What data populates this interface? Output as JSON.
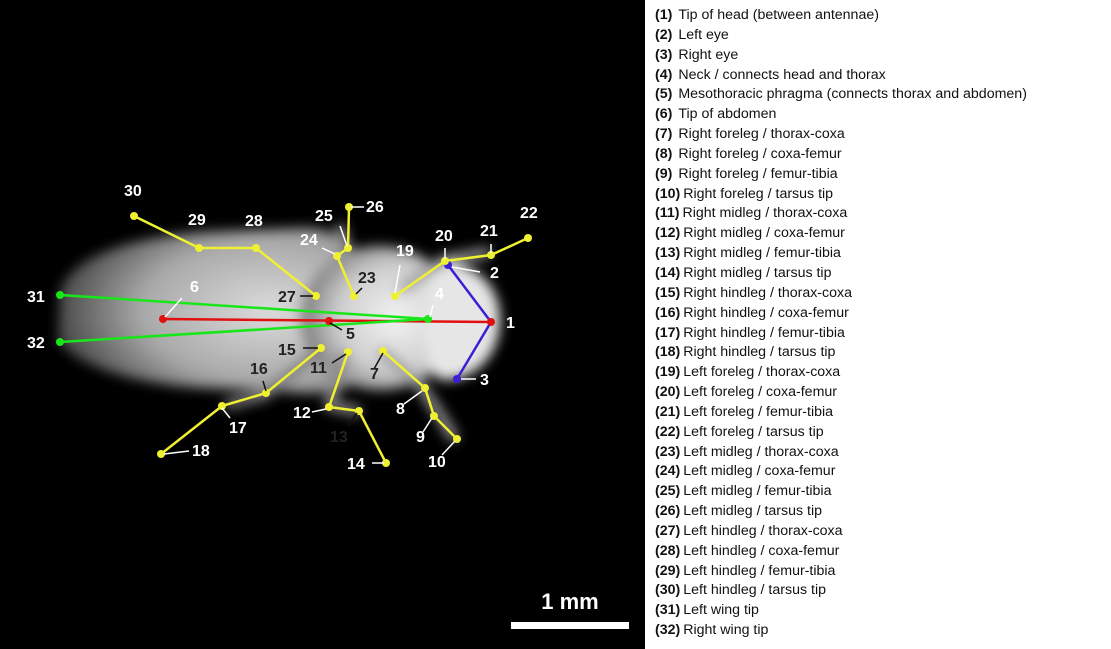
{
  "figure": {
    "scale_bar_label": "1 mm",
    "colors": {
      "background": "#000000",
      "legs": "#f0f032",
      "midline": "#e01010",
      "head": "#3a1fd6",
      "wings": "#19e619",
      "label_light": "#ffffff",
      "label_dark": "#222222"
    }
  },
  "legend": [
    {
      "num": "(1)",
      "text": "Tip of head (between antennae)"
    },
    {
      "num": "(2)",
      "text": "Left eye"
    },
    {
      "num": "(3)",
      "text": "Right eye"
    },
    {
      "num": "(4)",
      "text": "Neck / connects head and thorax"
    },
    {
      "num": "(5)",
      "text": "Mesothoracic phragma (connects thorax and abdomen)"
    },
    {
      "num": "(6)",
      "text": "Tip of abdomen"
    },
    {
      "num": "(7)",
      "text": "Right foreleg / thorax-coxa"
    },
    {
      "num": "(8)",
      "text": "Right foreleg / coxa-femur"
    },
    {
      "num": "(9)",
      "text": "Right foreleg / femur-tibia"
    },
    {
      "num": "(10)",
      "text": "Right foreleg / tarsus tip"
    },
    {
      "num": "(11)",
      "text": "Right midleg / thorax-coxa"
    },
    {
      "num": "(12)",
      "text": "Right midleg / coxa-femur"
    },
    {
      "num": "(13)",
      "text": "Right midleg / femur-tibia"
    },
    {
      "num": "(14)",
      "text": "Right midleg / tarsus tip"
    },
    {
      "num": "(15)",
      "text": "Right hindleg / thorax-coxa"
    },
    {
      "num": "(16)",
      "text": "Right hindleg / coxa-femur"
    },
    {
      "num": "(17)",
      "text": "Right hindleg / femur-tibia"
    },
    {
      "num": "(18)",
      "text": "Right hindleg / tarsus tip"
    },
    {
      "num": "(19)",
      "text": "Left foreleg / thorax-coxa"
    },
    {
      "num": "(20)",
      "text": "Left foreleg / coxa-femur"
    },
    {
      "num": "(21)",
      "text": "Left foreleg / femur-tibia"
    },
    {
      "num": "(22)",
      "text": "Left foreleg / tarsus tip"
    },
    {
      "num": "(23)",
      "text": "Left midleg / thorax-coxa"
    },
    {
      "num": "(24)",
      "text": "Left midleg / coxa-femur"
    },
    {
      "num": "(25)",
      "text": "Left midleg / femur-tibia"
    },
    {
      "num": "(26)",
      "text": "Left midleg / tarsus tip"
    },
    {
      "num": "(27)",
      "text": "Left hindleg / thorax-coxa"
    },
    {
      "num": "(28)",
      "text": "Left hindleg / coxa-femur"
    },
    {
      "num": "(29)",
      "text": "Left hindleg / femur-tibia"
    },
    {
      "num": "(30)",
      "text": "Left hindleg / tarsus tip"
    },
    {
      "num": "(31)",
      "text": "Left wing tip"
    },
    {
      "num": "(32)",
      "text": "Right wing tip"
    }
  ]
}
